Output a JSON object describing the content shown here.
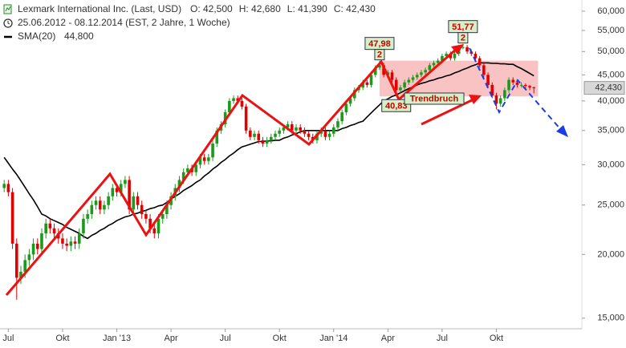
{
  "chart_data": {
    "type": "candlestick",
    "title": "Lexmark International Inc. (Last, USD)",
    "quote_labels": [
      "O: 42,500",
      "H: 42,680",
      "L: 41,390",
      "C: 42,430"
    ],
    "period": "25.06.2012 - 08.12.2014 (EST, 2 Jahre, 1 Woche)",
    "log_scale": true,
    "grid": false,
    "up_color": "#1a9a1a",
    "down_color": "#e00000",
    "last_price_label": "42,430",
    "xlim": [
      -1,
      138.5
    ],
    "ylim": [
      14.3,
      63.1
    ],
    "xticks": [
      {
        "value": 1,
        "label": "Jul"
      },
      {
        "value": 14,
        "label": "Okt"
      },
      {
        "value": 27,
        "label": "Jan '13"
      },
      {
        "value": 40,
        "label": "Apr"
      },
      {
        "value": 53,
        "label": "Jul"
      },
      {
        "value": 66,
        "label": "Okt"
      },
      {
        "value": 79,
        "label": "Jan '14"
      },
      {
        "value": 92,
        "label": "Apr"
      },
      {
        "value": 105,
        "label": "Jul"
      },
      {
        "value": 118,
        "label": "Okt"
      }
    ],
    "yticks": [
      {
        "value": 60,
        "label": "60,000"
      },
      {
        "value": 55,
        "label": "55,000"
      },
      {
        "value": 50,
        "label": "50,000"
      },
      {
        "value": 45,
        "label": "45,000"
      },
      {
        "value": 40,
        "label": "40,000"
      },
      {
        "value": 35,
        "label": "35,000"
      },
      {
        "value": 30,
        "label": "30,000"
      },
      {
        "value": 25,
        "label": "25,000"
      },
      {
        "value": 20,
        "label": "20,000"
      },
      {
        "value": 15,
        "label": "15,000"
      }
    ],
    "candles": [
      [
        27,
        28,
        26.5,
        27.5
      ],
      [
        27.5,
        28,
        26,
        26.5
      ],
      [
        26.5,
        27,
        20.5,
        21
      ],
      [
        21,
        21.5,
        16.3,
        18
      ],
      [
        18,
        19,
        17.5,
        18.5
      ],
      [
        18.5,
        20,
        18,
        19.5
      ],
      [
        19.5,
        20.5,
        19,
        20
      ],
      [
        20,
        21.5,
        19.5,
        21
      ],
      [
        21,
        21.5,
        20,
        20.5
      ],
      [
        20.5,
        22.5,
        20,
        22
      ],
      [
        22,
        23.5,
        21.5,
        23
      ],
      [
        23,
        23.5,
        22,
        22.5
      ],
      [
        22.5,
        23,
        21.5,
        22
      ],
      [
        22,
        22.5,
        21,
        21.5
      ],
      [
        21.5,
        22,
        20.5,
        21
      ],
      [
        21,
        21.5,
        20.3,
        20.8
      ],
      [
        20.8,
        21.7,
        20.3,
        21.2
      ],
      [
        21.2,
        21.7,
        20.5,
        21
      ],
      [
        21,
        22.5,
        20.5,
        22
      ],
      [
        22,
        24,
        21.5,
        23.5
      ],
      [
        23.5,
        24.5,
        23,
        24
      ],
      [
        24,
        25.5,
        23.5,
        25
      ],
      [
        25,
        26,
        24.5,
        25.5
      ],
      [
        25.5,
        26,
        24,
        24.5
      ],
      [
        24.5,
        25.5,
        24,
        25
      ],
      [
        25,
        26.5,
        24.5,
        26
      ],
      [
        26,
        27.5,
        25.5,
        27
      ],
      [
        27,
        27.5,
        26,
        26.5
      ],
      [
        26.5,
        28,
        26,
        27.5
      ],
      [
        27.5,
        28.5,
        27,
        28
      ],
      [
        28,
        28.5,
        24,
        24.5
      ],
      [
        24.5,
        26.5,
        24,
        26
      ],
      [
        26,
        26.5,
        24.5,
        25
      ],
      [
        25,
        25.5,
        23.5,
        24
      ],
      [
        24,
        24.5,
        23,
        23.5
      ],
      [
        23.5,
        24,
        22,
        22.5
      ],
      [
        22.5,
        23,
        21.5,
        22
      ],
      [
        22,
        24,
        21.5,
        23.5
      ],
      [
        23.5,
        24.5,
        23,
        24
      ],
      [
        24,
        25.5,
        23.5,
        25
      ],
      [
        25,
        26.5,
        24.5,
        26
      ],
      [
        26,
        27.5,
        25.5,
        27
      ],
      [
        27,
        28.5,
        26.5,
        28
      ],
      [
        28,
        29.5,
        27.5,
        29
      ],
      [
        29,
        30,
        28.5,
        29.5
      ],
      [
        29.5,
        30,
        28.5,
        29
      ],
      [
        29,
        30.5,
        28.5,
        30
      ],
      [
        30,
        31.5,
        29.5,
        31
      ],
      [
        31,
        31.5,
        30,
        30.5
      ],
      [
        30.5,
        31.5,
        30,
        31
      ],
      [
        31,
        33.5,
        30.5,
        33
      ],
      [
        33,
        35.5,
        32.5,
        35
      ],
      [
        35,
        36.5,
        34.5,
        36
      ],
      [
        36,
        38.5,
        35.5,
        38
      ],
      [
        38,
        40.5,
        37.5,
        40
      ],
      [
        40,
        41,
        39.5,
        40.5
      ],
      [
        40.5,
        41,
        39.5,
        40
      ],
      [
        40,
        40.5,
        38.5,
        39
      ],
      [
        39,
        39.5,
        34.5,
        35
      ],
      [
        35,
        35.5,
        33.5,
        34
      ],
      [
        34,
        35,
        33.5,
        34.5
      ],
      [
        34.5,
        35,
        33,
        33.5
      ],
      [
        33.5,
        34,
        32.5,
        33
      ],
      [
        33,
        34,
        32.5,
        33.5
      ],
      [
        33.5,
        34.5,
        33,
        34
      ],
      [
        34,
        35,
        33.5,
        34.5
      ],
      [
        34.5,
        35.5,
        34,
        35
      ],
      [
        35,
        36,
        34.5,
        35.5
      ],
      [
        35.5,
        36.5,
        35,
        36
      ],
      [
        36,
        36.5,
        34.5,
        35
      ],
      [
        35,
        36,
        34.5,
        35.5
      ],
      [
        35.5,
        36,
        34.5,
        35
      ],
      [
        35,
        35.5,
        34,
        34.5
      ],
      [
        34.5,
        35,
        33.5,
        34
      ],
      [
        34,
        34.5,
        33,
        33.5
      ],
      [
        33.5,
        35,
        33,
        34.5
      ],
      [
        34.5,
        35.5,
        34,
        35
      ],
      [
        35,
        35.5,
        33.5,
        34
      ],
      [
        34,
        35,
        33.5,
        34.5
      ],
      [
        34.5,
        36,
        34,
        35.5
      ],
      [
        35.5,
        37,
        35,
        36.5
      ],
      [
        36.5,
        38.5,
        36,
        38
      ],
      [
        38,
        40,
        37.5,
        39.5
      ],
      [
        39.5,
        41,
        39,
        40.5
      ],
      [
        40.5,
        42.5,
        40,
        42
      ],
      [
        42,
        43,
        41.5,
        42.5
      ],
      [
        42.5,
        44,
        42,
        43.5
      ],
      [
        43.5,
        44,
        42.5,
        43
      ],
      [
        43,
        45.5,
        42.5,
        45
      ],
      [
        45,
        47,
        44.5,
        46.5
      ],
      [
        46.5,
        47.98,
        46,
        47
      ],
      [
        47,
        47.5,
        44.5,
        45
      ],
      [
        45,
        46,
        44.5,
        45.5
      ],
      [
        45.5,
        46,
        43.5,
        44
      ],
      [
        44,
        44.5,
        40.83,
        42
      ],
      [
        42,
        43,
        41.5,
        42.5
      ],
      [
        42.5,
        44,
        42,
        43.5
      ],
      [
        43.5,
        44.5,
        43,
        44
      ],
      [
        44,
        45,
        43.5,
        44.5
      ],
      [
        44.5,
        45.5,
        44,
        45
      ],
      [
        45,
        46,
        44.5,
        45.5
      ],
      [
        45.5,
        46.5,
        45,
        46
      ],
      [
        46,
        47.5,
        45.5,
        47
      ],
      [
        47,
        48,
        46.5,
        47.5
      ],
      [
        47.5,
        48.5,
        47,
        48
      ],
      [
        48,
        49.5,
        47.5,
        49
      ],
      [
        49,
        50,
        48.5,
        49.5
      ],
      [
        49.5,
        50,
        48,
        48.5
      ],
      [
        48.5,
        50,
        48,
        49.5
      ],
      [
        49.5,
        51.5,
        49,
        51
      ],
      [
        51,
        51.77,
        50.5,
        51
      ],
      [
        51,
        51.5,
        49.5,
        50
      ],
      [
        50,
        50.5,
        49,
        49.5
      ],
      [
        49.5,
        50,
        48,
        48.5
      ],
      [
        48.5,
        49,
        46.5,
        47
      ],
      [
        47,
        47.5,
        44.5,
        45
      ],
      [
        45,
        45.5,
        42.5,
        43
      ],
      [
        43,
        43.5,
        40.5,
        41
      ],
      [
        41,
        41.5,
        38.5,
        39.5
      ],
      [
        39.5,
        41,
        39,
        40.5
      ],
      [
        40.5,
        42.5,
        40,
        42
      ],
      [
        42,
        44.5,
        41.5,
        44
      ],
      [
        44,
        44.5,
        43,
        43.5
      ],
      [
        43.5,
        44,
        42.5,
        43
      ],
      [
        43,
        43.5,
        42.5,
        43
      ],
      [
        43,
        43.3,
        42.3,
        42.8
      ],
      [
        42.8,
        43,
        42,
        42.5
      ],
      [
        42.5,
        42.68,
        41.39,
        42.43
      ]
    ],
    "series": [
      {
        "name": "SMA(20)",
        "last_label": "44,800",
        "color": "#000000",
        "values": [
          31,
          30.2,
          29.4,
          28.7,
          27.9,
          27.1,
          26.3,
          25.6,
          24.8,
          24,
          23.8,
          23.5,
          23.3,
          23.1,
          22.9,
          22.6,
          22.4,
          22.2,
          22,
          21.7,
          21.5,
          21.8,
          22,
          22.3,
          22.5,
          22.8,
          23,
          23.3,
          23.5,
          23.7,
          23.8,
          24,
          24.1,
          24.3,
          24.4,
          24.6,
          24.7,
          24.9,
          25,
          25.3,
          25.7,
          26,
          26.3,
          26.7,
          27,
          27.3,
          27.7,
          28,
          28.5,
          28.9,
          29.4,
          29.8,
          30.3,
          30.7,
          31.2,
          31.6,
          32.1,
          32.5,
          32.7,
          32.9,
          33.1,
          33.3,
          33.3,
          33.4,
          33.4,
          33.5,
          33.5,
          33.8,
          34,
          34.3,
          34.5,
          34.8,
          35,
          35,
          35,
          35,
          35,
          35,
          35,
          35,
          35,
          35.3,
          35.5,
          35.8,
          36,
          36.3,
          36.5,
          37.2,
          37.9,
          38.6,
          39.3,
          40,
          40.4,
          40.8,
          41.1,
          41.5,
          41.9,
          42.3,
          42.6,
          43,
          43.3,
          43.5,
          43.8,
          44,
          44.3,
          44.5,
          44.8,
          45,
          45.4,
          45.7,
          46.1,
          46.4,
          46.8,
          47.1,
          47.5,
          47.5,
          47.5,
          47.4,
          47.4,
          47.3,
          47.3,
          47.2,
          47.2,
          46.7,
          46.3,
          45.8,
          45.3,
          44.8
        ]
      }
    ],
    "zone": {
      "from": 90,
      "to": 128,
      "range": [
        40.83,
        47.98
      ]
    },
    "annotations": [
      {
        "label": "47,98",
        "value": 47.98,
        "index": 90,
        "note": "2",
        "side": "above"
      },
      {
        "label": "40,83",
        "value": 40.83,
        "index": 94,
        "side": "below"
      },
      {
        "label": "51,77",
        "value": 51.77,
        "index": 110,
        "note": "2",
        "side": "above"
      }
    ],
    "trend_text": "Trendbruch"
  }
}
